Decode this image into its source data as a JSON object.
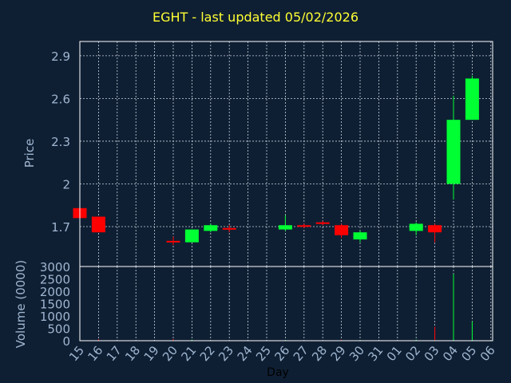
{
  "title": "EGHT - last updated 05/02/2026",
  "chart_data": [
    {
      "type": "candlestick",
      "ylabel": "Price",
      "ylim": [
        1.42,
        3.0
      ],
      "yticks": [
        1.7,
        2.0,
        2.3,
        2.6,
        2.9
      ],
      "ytick_labels": [
        "1.7",
        "2",
        "2.3",
        "2.6",
        "2.9"
      ],
      "grid": true,
      "up_color": "#00ff33",
      "down_color": "#ff0000",
      "x": [
        "15",
        "16",
        "17",
        "18",
        "19",
        "20",
        "21",
        "22",
        "23",
        "24",
        "25",
        "26",
        "27",
        "28",
        "29",
        "30",
        "31",
        "01",
        "02",
        "03",
        "04",
        "05",
        "06"
      ],
      "candles": [
        {
          "day": "15",
          "open": 1.83,
          "high": 1.83,
          "low": 1.76,
          "close": 1.76
        },
        {
          "day": "16",
          "open": 1.77,
          "high": 1.77,
          "low": 1.66,
          "close": 1.66
        },
        {
          "day": "20",
          "open": 1.6,
          "high": 1.63,
          "low": 1.57,
          "close": 1.59
        },
        {
          "day": "21",
          "open": 1.59,
          "high": 1.68,
          "low": 1.59,
          "close": 1.68
        },
        {
          "day": "22",
          "open": 1.67,
          "high": 1.72,
          "low": 1.66,
          "close": 1.71
        },
        {
          "day": "23",
          "open": 1.69,
          "high": 1.71,
          "low": 1.66,
          "close": 1.68
        },
        {
          "day": "26",
          "open": 1.68,
          "high": 1.78,
          "low": 1.67,
          "close": 1.71
        },
        {
          "day": "27",
          "open": 1.71,
          "high": 1.72,
          "low": 1.69,
          "close": 1.7
        },
        {
          "day": "28",
          "open": 1.73,
          "high": 1.74,
          "low": 1.71,
          "close": 1.72
        },
        {
          "day": "29",
          "open": 1.71,
          "high": 1.72,
          "low": 1.62,
          "close": 1.64
        },
        {
          "day": "30",
          "open": 1.61,
          "high": 1.67,
          "low": 1.59,
          "close": 1.66
        },
        {
          "day": "02",
          "open": 1.67,
          "high": 1.73,
          "low": 1.64,
          "close": 1.72
        },
        {
          "day": "03",
          "open": 1.71,
          "high": 1.72,
          "low": 1.59,
          "close": 1.66
        },
        {
          "day": "04",
          "open": 2.0,
          "high": 2.62,
          "low": 1.89,
          "close": 2.45
        },
        {
          "day": "05",
          "open": 2.45,
          "high": 2.76,
          "low": 2.45,
          "close": 2.74
        }
      ]
    },
    {
      "type": "bar",
      "ylabel": "Volume (0000)",
      "xlabel": "Day",
      "ylim": [
        0,
        3000
      ],
      "yticks": [
        0,
        500,
        1000,
        1500,
        2000,
        2500,
        3000
      ],
      "categories": [
        "15",
        "16",
        "17",
        "18",
        "19",
        "20",
        "21",
        "22",
        "23",
        "24",
        "25",
        "26",
        "27",
        "28",
        "29",
        "30",
        "31",
        "01",
        "02",
        "03",
        "04",
        "05",
        "06"
      ],
      "values": [
        10,
        60,
        0,
        0,
        0,
        70,
        40,
        20,
        20,
        0,
        0,
        30,
        20,
        20,
        40,
        30,
        0,
        0,
        40,
        560,
        2700,
        780,
        0
      ],
      "colors": [
        "red",
        "red",
        "",
        "",
        "",
        "red",
        "green",
        "green",
        "red",
        "",
        "",
        "green",
        "red",
        "red",
        "red",
        "green",
        "",
        "",
        "green",
        "red",
        "green",
        "green",
        ""
      ]
    }
  ]
}
